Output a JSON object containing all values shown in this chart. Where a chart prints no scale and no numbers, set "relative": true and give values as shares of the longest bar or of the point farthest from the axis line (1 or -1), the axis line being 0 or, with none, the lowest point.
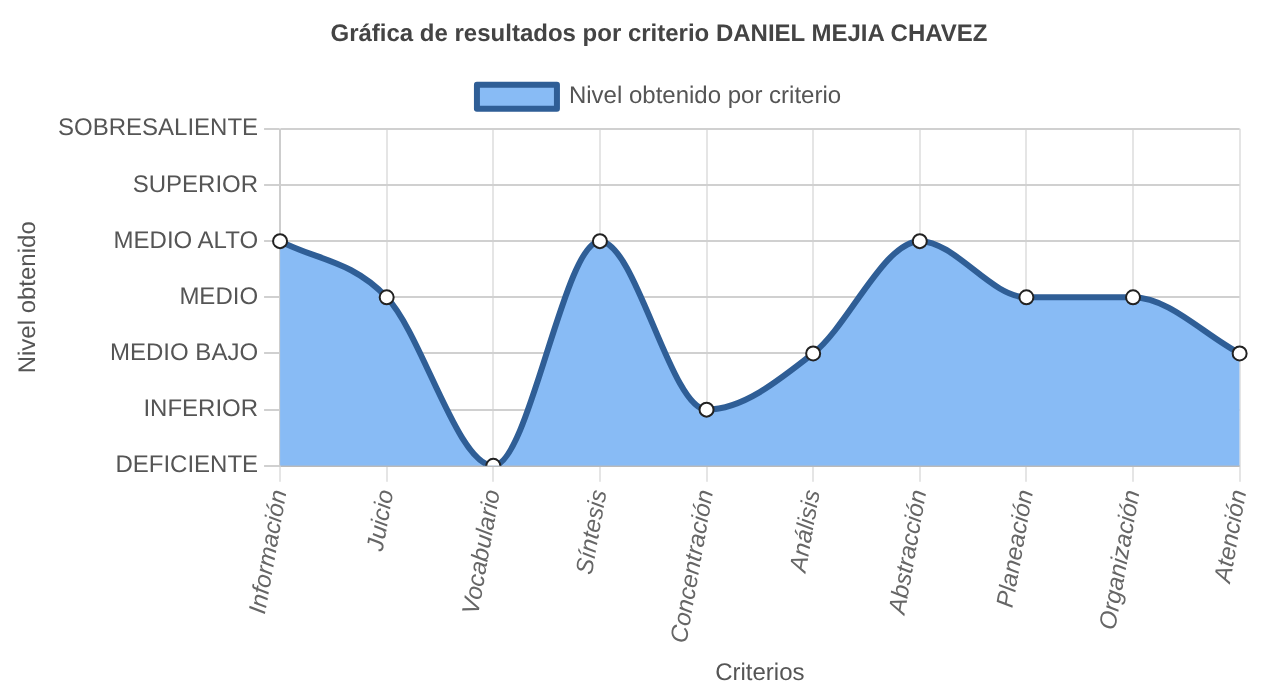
{
  "chart_data": {
    "type": "area",
    "title": "Gráfica de resultados por criterio DANIEL MEJIA CHAVEZ",
    "xlabel": "Criterios",
    "categories": [
      "Información",
      "Juicio",
      "Vocabulario",
      "Síntesis",
      "Concentración",
      "Análisis",
      "Abstracción",
      "Planeación",
      "Organización",
      "Atención"
    ],
    "series": [
      {
        "name": "Nivel obtenido por criterio",
        "color": "#2f5e96",
        "values": [
          1,
          0.75,
          0,
          1,
          0.25,
          0.5,
          1,
          0.75,
          0.75,
          0.5
        ]
      }
    ],
    "relative": true,
    "annotations": [
      "Nivel obtenido",
      "DEFICIENTE",
      "INFERIOR",
      "MEDIO BAJO",
      "MEDIO",
      "MEDIO ALTO",
      "SUPERIOR",
      "SOBRESALIENTE"
    ],
    "grid": true,
    "legend": "top",
    "marker": "circle",
    "line_style": "solid"
  }
}
